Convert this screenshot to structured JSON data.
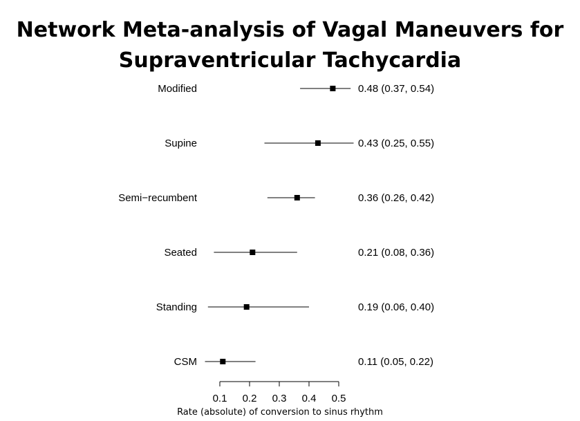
{
  "chart_data": {
    "type": "forest",
    "title_line1": "Network Meta-analysis of Vagal Maneuvers for",
    "title_line2": "Supraventricular Tachycardia",
    "xlabel": "Rate (absolute) of conversion to sinus rhythm",
    "xlim": [
      0.1,
      0.5
    ],
    "xticks": [
      "0.1",
      "0.2",
      "0.3",
      "0.4",
      "0.5"
    ],
    "rows": [
      {
        "label": "Modified",
        "estimate": 0.48,
        "lower": 0.37,
        "upper": 0.54,
        "ci_text": "0.48 (0.37, 0.54)"
      },
      {
        "label": "Supine",
        "estimate": 0.43,
        "lower": 0.25,
        "upper": 0.55,
        "ci_text": "0.43 (0.25, 0.55)"
      },
      {
        "label": "Semi−recumbent",
        "estimate": 0.36,
        "lower": 0.26,
        "upper": 0.42,
        "ci_text": "0.36 (0.26, 0.42)"
      },
      {
        "label": "Seated",
        "estimate": 0.21,
        "lower": 0.08,
        "upper": 0.36,
        "ci_text": "0.21 (0.08, 0.36)"
      },
      {
        "label": "Standing",
        "estimate": 0.19,
        "lower": 0.06,
        "upper": 0.4,
        "ci_text": "0.19 (0.06, 0.40)"
      },
      {
        "label": "CSM",
        "estimate": 0.11,
        "lower": 0.05,
        "upper": 0.22,
        "ci_text": "0.11 (0.05, 0.22)"
      }
    ]
  }
}
